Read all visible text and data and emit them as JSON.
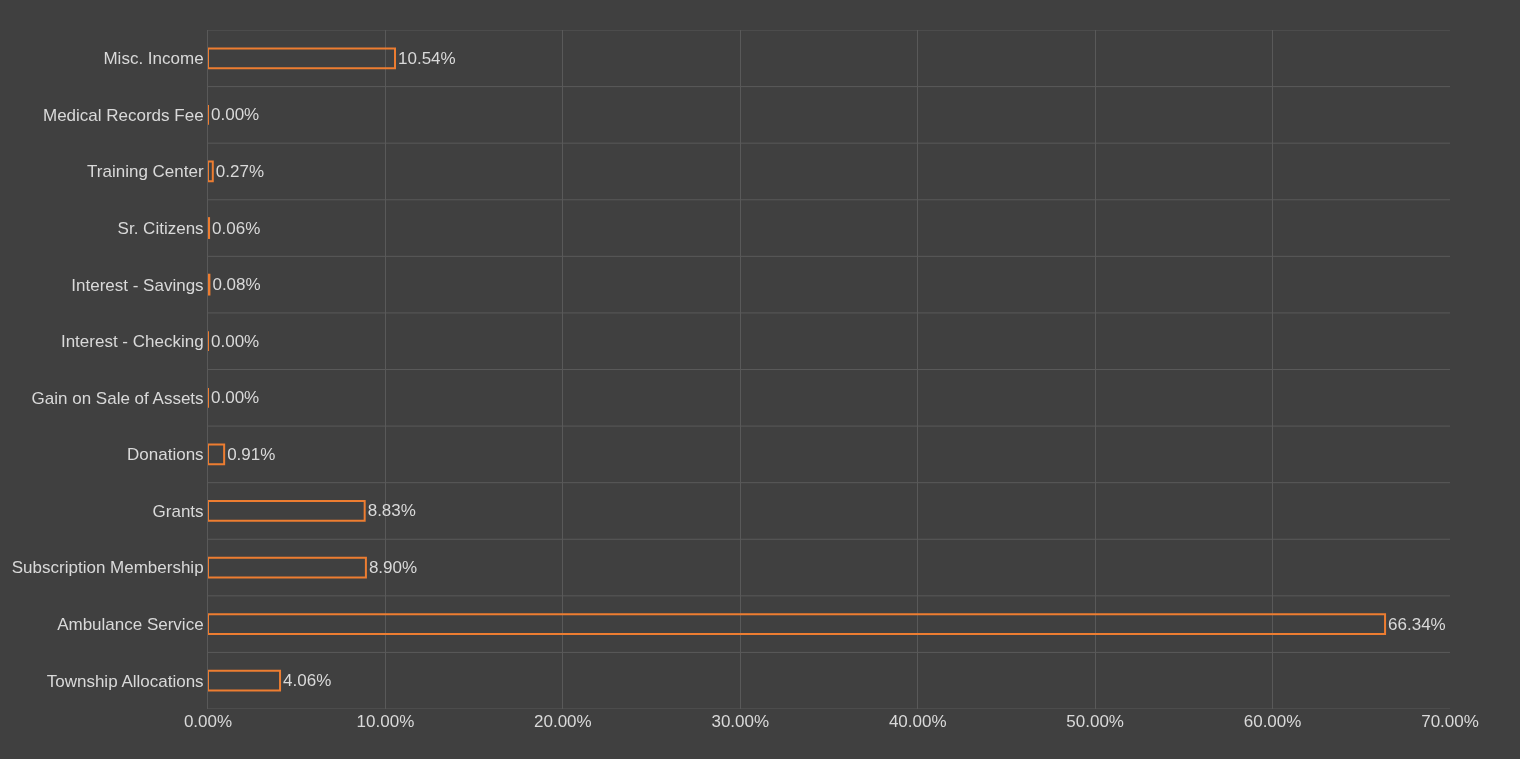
{
  "chart_data": {
    "type": "bar",
    "orientation": "horizontal",
    "categories": [
      "Misc. Income",
      "Medical Records Fee",
      "Training Center",
      "Sr. Citizens",
      "Interest - Savings",
      "Interest - Checking",
      "Gain on Sale of Assets",
      "Donations",
      "Grants",
      "Subscription Membership",
      "Ambulance Service",
      "Township Allocations"
    ],
    "values": [
      10.54,
      0.0,
      0.27,
      0.06,
      0.08,
      0.0,
      0.0,
      0.91,
      8.83,
      8.9,
      66.34,
      4.06
    ],
    "value_labels": [
      "10.54%",
      "0.00%",
      "0.27%",
      "0.06%",
      "0.08%",
      "0.00%",
      "0.00%",
      "0.91%",
      "8.83%",
      "8.90%",
      "66.34%",
      "4.06%"
    ],
    "color": "#ed7d31",
    "xlim": [
      0,
      70
    ],
    "xticks": [
      {
        "value": 0,
        "label": "0.00%"
      },
      {
        "value": 10,
        "label": "10.00%"
      },
      {
        "value": 20,
        "label": "20.00%"
      },
      {
        "value": 30,
        "label": "30.00%"
      },
      {
        "value": 40,
        "label": "40.00%"
      },
      {
        "value": 50,
        "label": "50.00%"
      },
      {
        "value": 60,
        "label": "60.00%"
      },
      {
        "value": 70,
        "label": "70.00%"
      }
    ],
    "grid": true,
    "legend": false
  }
}
